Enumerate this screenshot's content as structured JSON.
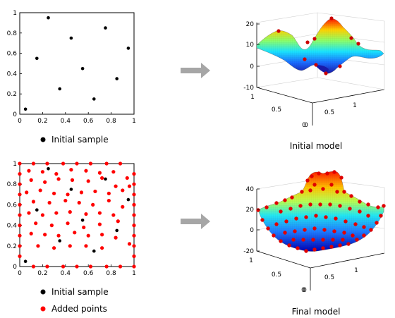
{
  "chart_data": [
    {
      "type": "scatter",
      "xlim": [
        0,
        1
      ],
      "ylim": [
        0,
        1
      ],
      "x_ticks": [
        "0",
        "0.2",
        "0.4",
        "0.6",
        "0.8",
        "1"
      ],
      "y_ticks": [
        "0",
        "0.2",
        "0.4",
        "0.6",
        "0.8",
        "1"
      ],
      "series": [
        {
          "name": "Initial sample",
          "color": "#000000",
          "x": [
            0.05,
            0.15,
            0.25,
            0.35,
            0.45,
            0.55,
            0.65,
            0.75,
            0.85,
            0.95
          ],
          "y": [
            0.05,
            0.55,
            0.95,
            0.25,
            0.75,
            0.45,
            0.15,
            0.85,
            0.35,
            0.65
          ]
        }
      ]
    },
    {
      "type": "scatter",
      "xlim": [
        0,
        1
      ],
      "ylim": [
        0,
        1
      ],
      "x_ticks": [
        "0",
        "0.2",
        "0.4",
        "0.6",
        "0.8",
        "1"
      ],
      "y_ticks": [
        "0",
        "0.2",
        "0.4",
        "0.6",
        "0.8",
        "1"
      ],
      "series": [
        {
          "name": "Initial sample",
          "color": "#000000",
          "x": [
            0.05,
            0.15,
            0.25,
            0.35,
            0.45,
            0.55,
            0.65,
            0.75,
            0.85,
            0.95
          ],
          "y": [
            0.05,
            0.55,
            0.95,
            0.25,
            0.75,
            0.45,
            0.15,
            0.85,
            0.35,
            0.65
          ]
        },
        {
          "name": "Added points",
          "color": "#ff0000",
          "x": [
            0.0,
            0.0,
            0.0,
            0.0,
            0.0,
            0.0,
            0.0,
            0.0,
            0.0,
            0.0,
            1.0,
            1.0,
            1.0,
            1.0,
            1.0,
            1.0,
            1.0,
            1.0,
            1.0,
            1.0,
            0.12,
            0.24,
            0.38,
            0.5,
            0.62,
            0.76,
            0.88,
            0.12,
            0.24,
            0.38,
            0.5,
            0.62,
            0.76,
            0.88,
            0.08,
            0.2,
            0.32,
            0.45,
            0.58,
            0.7,
            0.82,
            0.94,
            0.1,
            0.22,
            0.34,
            0.46,
            0.6,
            0.72,
            0.84,
            0.96,
            0.06,
            0.18,
            0.3,
            0.42,
            0.54,
            0.66,
            0.78,
            0.9,
            0.12,
            0.26,
            0.4,
            0.52,
            0.64,
            0.78,
            0.9,
            0.08,
            0.2,
            0.32,
            0.44,
            0.58,
            0.7,
            0.82,
            0.14,
            0.28,
            0.42,
            0.56,
            0.7,
            0.86,
            0.1,
            0.22,
            0.34,
            0.48,
            0.6,
            0.72,
            0.84,
            0.96,
            0.16,
            0.3,
            0.44,
            0.58,
            0.72
          ],
          "y": [
            0.1,
            0.2,
            0.3,
            0.4,
            0.5,
            0.6,
            0.7,
            0.8,
            0.9,
            1.0,
            0.0,
            0.1,
            0.2,
            0.3,
            0.4,
            0.5,
            0.6,
            0.7,
            0.8,
            0.9,
            1.0,
            1.0,
            1.0,
            1.0,
            1.0,
            1.0,
            1.0,
            0.0,
            0.0,
            0.0,
            0.0,
            0.0,
            0.0,
            0.0,
            0.93,
            0.92,
            0.9,
            0.94,
            0.93,
            0.91,
            0.92,
            0.86,
            0.84,
            0.82,
            0.85,
            0.84,
            0.83,
            0.86,
            0.78,
            0.78,
            0.72,
            0.74,
            0.71,
            0.7,
            0.72,
            0.73,
            0.71,
            0.74,
            0.63,
            0.62,
            0.64,
            0.62,
            0.6,
            0.64,
            0.58,
            0.52,
            0.5,
            0.52,
            0.53,
            0.51,
            0.52,
            0.5,
            0.42,
            0.4,
            0.42,
            0.38,
            0.41,
            0.44,
            0.32,
            0.31,
            0.3,
            0.33,
            0.3,
            0.31,
            0.28,
            0.22,
            0.2,
            0.18,
            0.2,
            0.2,
            0.18
          ]
        }
      ]
    },
    {
      "type": "surface",
      "zlim": [
        -10,
        20
      ],
      "z_ticks": [
        "-10",
        "0",
        "10",
        "20"
      ],
      "x_ticks": [
        "0",
        "0.5",
        "1"
      ],
      "y_ticks": [
        "0",
        "0.5",
        "1"
      ]
    },
    {
      "type": "surface",
      "zlim": [
        -20,
        40
      ],
      "z_ticks": [
        "-20",
        "0",
        "20",
        "40"
      ],
      "x_ticks": [
        "0",
        "0.5",
        "1"
      ],
      "y_ticks": [
        "0",
        "0.5",
        "1"
      ]
    }
  ],
  "legend_top": [
    {
      "label": "Initial sample",
      "color": "#000000"
    }
  ],
  "legend_bottom": [
    {
      "label": "Initial sample",
      "color": "#000000"
    },
    {
      "label": "Added points",
      "color": "#ff0000"
    }
  ],
  "captions": {
    "initial_model": "Initial model",
    "final_model": "Final model"
  },
  "arrow_color": "#a6a6a6"
}
